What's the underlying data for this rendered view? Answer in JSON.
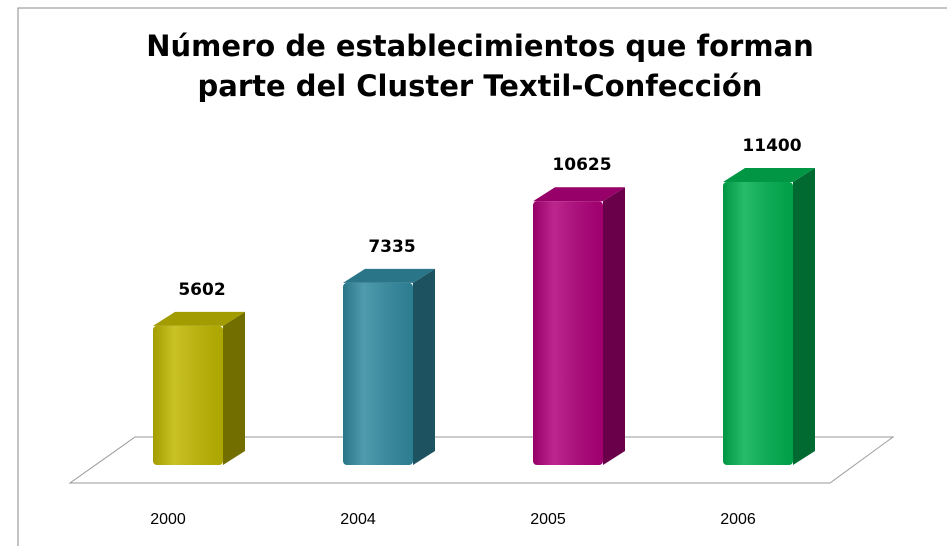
{
  "chart_data": {
    "type": "bar3d",
    "title": [
      "Número de establecimientos  que forman",
      "parte del Cluster Textil-Confección"
    ],
    "categories": [
      "2000",
      "2004",
      "2005",
      "2006"
    ],
    "values": [
      5602,
      7335,
      10625,
      11400
    ],
    "colors": [
      "#c0b800",
      "#318aa0",
      "#b0007a",
      "#00b050"
    ]
  }
}
